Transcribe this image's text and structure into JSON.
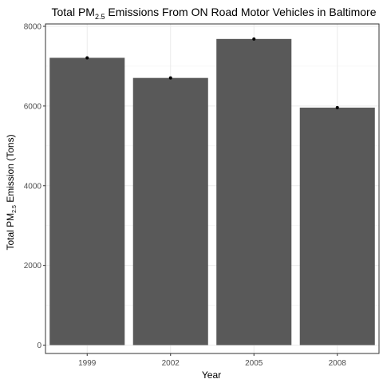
{
  "chart_data": {
    "type": "bar",
    "title": {
      "prefix": "Total PM",
      "subscript": "2.5",
      "suffix": " Emissions From ON Road Motor Vehicles in Baltimore"
    },
    "xlabel": "Year",
    "ylabel": {
      "prefix": "Total PM",
      "subscript": "2.5",
      "suffix": " Emission (Tons)"
    },
    "categories": [
      "1999",
      "2002",
      "2005",
      "2008"
    ],
    "values": [
      7210,
      6705,
      7683,
      5960
    ],
    "ylim": [
      -210,
      8060
    ],
    "yticks": [
      0,
      2000,
      4000,
      6000,
      8000
    ],
    "grid": true,
    "bar_color": "#595959",
    "point_color": "#000000",
    "theme": "bw",
    "legend": "none"
  }
}
